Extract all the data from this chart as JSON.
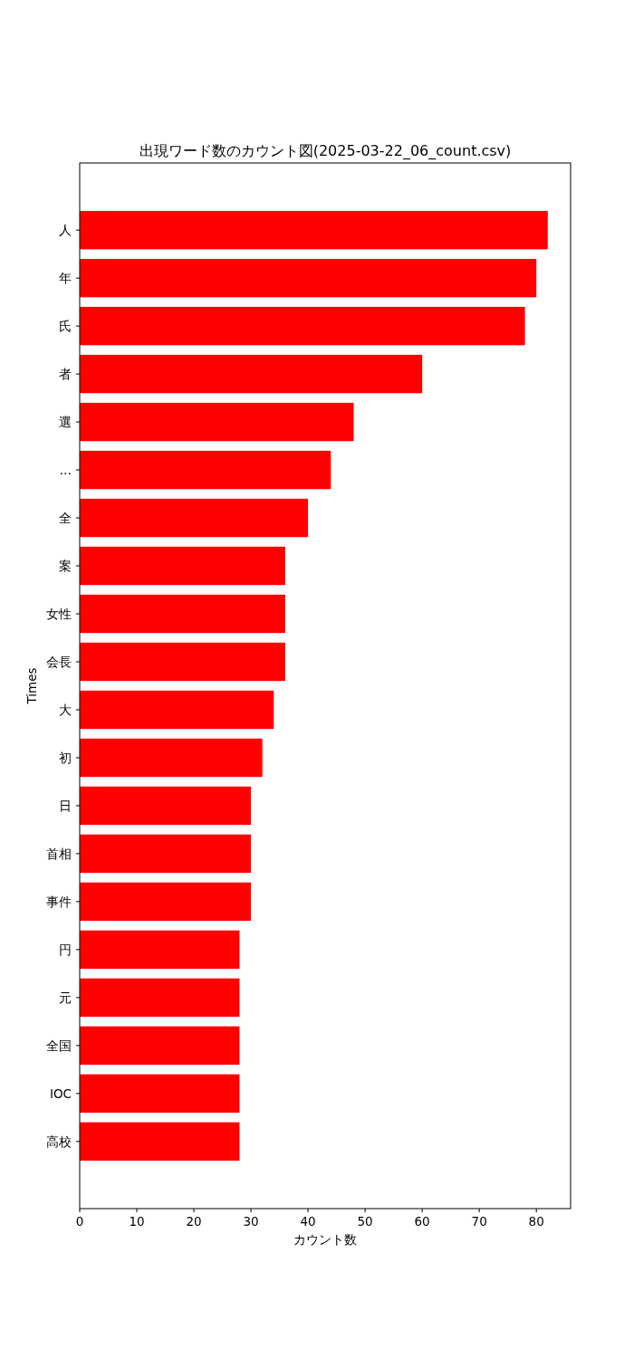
{
  "chart_data": {
    "type": "bar",
    "orientation": "horizontal",
    "title": "出現ワード数のカウント図(2025-03-22_06_count.csv)",
    "xlabel": "カウント数",
    "ylabel": "Times",
    "categories": [
      "人",
      "年",
      "氏",
      "者",
      "選",
      "…",
      "全",
      "案",
      "女性",
      "会長",
      "大",
      "初",
      "日",
      "首相",
      "事件",
      "円",
      "元",
      "全国",
      "IOC",
      "高校"
    ],
    "values": [
      82,
      80,
      78,
      60,
      48,
      44,
      40,
      36,
      36,
      36,
      34,
      32,
      30,
      30,
      30,
      28,
      28,
      28,
      28,
      28
    ],
    "color": "#ff0000",
    "xlim": [
      0,
      86
    ],
    "xticks": [
      0,
      10,
      20,
      30,
      40,
      50,
      60,
      70,
      80
    ]
  }
}
